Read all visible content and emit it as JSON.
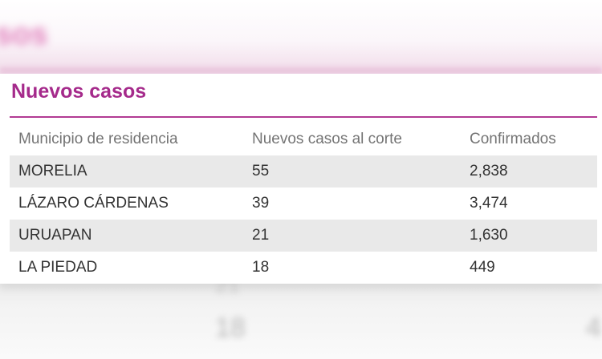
{
  "widget": {
    "title": "Nuevos casos",
    "columns": [
      "Municipio de residencia",
      "Nuevos casos al corte",
      "Confirmados"
    ],
    "rows": [
      {
        "municipio": "MORELIA",
        "nuevos": "55",
        "confirmados": "2,838"
      },
      {
        "municipio": "LÁZARO CÁRDENAS",
        "nuevos": "39",
        "confirmados": "3,474"
      },
      {
        "municipio": "URUAPAN",
        "nuevos": "21",
        "confirmados": "1,630"
      },
      {
        "municipio": "LA PIEDAD",
        "nuevos": "18",
        "confirmados": "449"
      }
    ]
  },
  "colors": {
    "title": "#a52a8b",
    "rule": "#b23a93",
    "shaded_row": "#e9e9e9"
  }
}
